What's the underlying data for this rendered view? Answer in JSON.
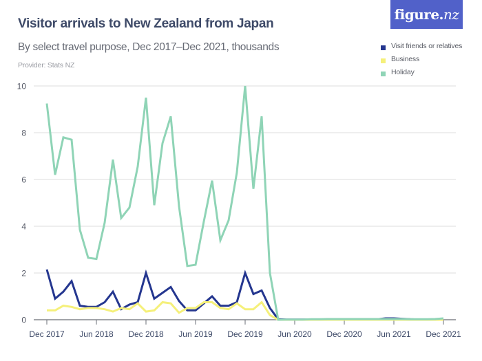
{
  "header": {
    "title": "Visitor arrivals to New Zealand from Japan",
    "subtitle": "By select travel purpose, Dec 2017–Dec 2021, thousands",
    "provider": "Provider: Stats NZ"
  },
  "logo": {
    "text_main": "figure.",
    "text_nz": "nz",
    "background": "#5161c9"
  },
  "legend": [
    {
      "label": "Visit friends or relatives",
      "color": "#24368f"
    },
    {
      "label": "Business",
      "color": "#f5f07a"
    },
    {
      "label": "Holiday",
      "color": "#8fd4b6"
    }
  ],
  "chart_data": {
    "type": "line",
    "title": "Visitor arrivals to New Zealand from Japan",
    "subtitle": "By select travel purpose, Dec 2017–Dec 2021, thousands",
    "xlabel": "",
    "ylabel": "thousands",
    "ylim": [
      0,
      10
    ],
    "yticks": [
      0,
      2,
      4,
      6,
      8,
      10
    ],
    "grid": true,
    "legend_position": "top-right",
    "x": [
      "Dec 2017",
      "Jan 2018",
      "Feb 2018",
      "Mar 2018",
      "Apr 2018",
      "May 2018",
      "Jun 2018",
      "Jul 2018",
      "Aug 2018",
      "Sep 2018",
      "Oct 2018",
      "Nov 2018",
      "Dec 2018",
      "Jan 2019",
      "Feb 2019",
      "Mar 2019",
      "Apr 2019",
      "May 2019",
      "Jun 2019",
      "Jul 2019",
      "Aug 2019",
      "Sep 2019",
      "Oct 2019",
      "Nov 2019",
      "Dec 2019",
      "Jan 2020",
      "Feb 2020",
      "Mar 2020",
      "Apr 2020",
      "May 2020",
      "Jun 2020",
      "Jul 2020",
      "Aug 2020",
      "Sep 2020",
      "Oct 2020",
      "Nov 2020",
      "Dec 2020",
      "Jan 2021",
      "Feb 2021",
      "Mar 2021",
      "Apr 2021",
      "May 2021",
      "Jun 2021",
      "Jul 2021",
      "Aug 2021",
      "Sep 2021",
      "Oct 2021",
      "Nov 2021",
      "Dec 2021"
    ],
    "xtick_labels": [
      "Dec 2017",
      "Jun 2018",
      "Dec 2018",
      "Jun 2019",
      "Dec 2019",
      "Jun 2020",
      "Dec 2020",
      "Jun 2021",
      "Dec 2021"
    ],
    "series": [
      {
        "name": "Visit friends or relatives",
        "color": "#24368f",
        "values": [
          2.15,
          0.9,
          1.2,
          1.65,
          0.6,
          0.55,
          0.55,
          0.75,
          1.2,
          0.45,
          0.65,
          0.75,
          2.0,
          0.9,
          1.15,
          1.4,
          0.8,
          0.4,
          0.4,
          0.7,
          1.0,
          0.6,
          0.6,
          0.75,
          2.0,
          1.1,
          1.25,
          0.5,
          0.02,
          0.01,
          0.01,
          0.01,
          0.01,
          0.01,
          0.01,
          0.01,
          0.01,
          0.01,
          0.01,
          0.01,
          0.02,
          0.06,
          0.06,
          0.04,
          0.02,
          0.01,
          0.01,
          0.01,
          0.02
        ]
      },
      {
        "name": "Business",
        "color": "#f5f07a",
        "values": [
          0.4,
          0.4,
          0.6,
          0.55,
          0.45,
          0.5,
          0.5,
          0.45,
          0.35,
          0.5,
          0.45,
          0.7,
          0.35,
          0.4,
          0.75,
          0.7,
          0.3,
          0.5,
          0.5,
          0.75,
          0.75,
          0.5,
          0.45,
          0.7,
          0.45,
          0.45,
          0.75,
          0.2,
          0.0,
          0.0,
          0.0,
          0.0,
          0.0,
          0.0,
          0.0,
          0.0,
          0.0,
          0.0,
          0.0,
          0.0,
          0.0,
          0.0,
          0.0,
          0.0,
          0.0,
          0.0,
          0.0,
          0.0,
          0.0
        ]
      },
      {
        "name": "Holiday",
        "color": "#8fd4b6",
        "values": [
          9.25,
          6.2,
          7.8,
          7.7,
          3.85,
          2.65,
          2.6,
          4.15,
          6.85,
          4.35,
          4.8,
          6.55,
          9.5,
          4.9,
          7.55,
          8.7,
          4.85,
          2.3,
          2.35,
          4.2,
          5.95,
          3.4,
          4.25,
          6.3,
          10.0,
          5.6,
          8.7,
          2.0,
          0.0,
          0.01,
          0.01,
          0.01,
          0.02,
          0.02,
          0.03,
          0.03,
          0.03,
          0.03,
          0.03,
          0.03,
          0.03,
          0.03,
          0.03,
          0.03,
          0.02,
          0.02,
          0.02,
          0.03,
          0.06
        ]
      }
    ]
  }
}
